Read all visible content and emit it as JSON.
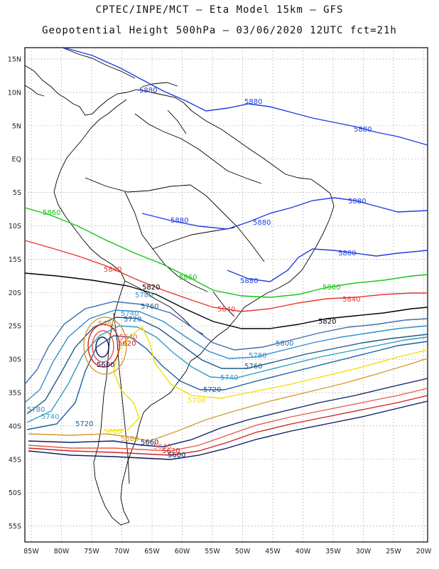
{
  "title_line1": "CPTEC/INPE/MCT –  Eta Model 15km – GFS",
  "title_line2": "Geopotential Height 500hPa – 03/06/2020 12UTC fct=21h",
  "lat_ticks": [
    "15N",
    "10N",
    "5N",
    "EQ",
    "5S",
    "10S",
    "15S",
    "20S",
    "25S",
    "30S",
    "35S",
    "40S",
    "45S",
    "50S",
    "55S"
  ],
  "lon_ticks": [
    "85W",
    "80W",
    "75W",
    "70W",
    "65W",
    "60W",
    "55W",
    "50W",
    "45W",
    "40W",
    "35W",
    "30W",
    "25W",
    "20W"
  ],
  "contour_labels": {
    "c5880": "5880",
    "c5860": "5860",
    "c5840": "5840",
    "c5820": "5820",
    "c5800": "5800",
    "c5780": "5780",
    "c5760": "5760",
    "c5740": "5740",
    "c5720": "5720",
    "c5700": "5700",
    "c5680": "5680",
    "c5660": "5660",
    "c5640": "5640",
    "c5620": "5620",
    "c5600": "5600"
  },
  "colors": {
    "c5880": "#1f3fe0",
    "c5860": "#16c416",
    "c5840": "#e8382f",
    "c5820": "#000000",
    "c5800": "#3d6fb0",
    "c5780": "#2f8fcf",
    "c5760": "#1f5a8a",
    "c5740": "#2ba0c0",
    "c5720": "#1c5fa8",
    "c5700": "#f0e000",
    "c5680": "#d89a30",
    "c5660": "#0c1f6a",
    "c5640": "#e85a4a",
    "c5620": "#d02020",
    "c5600": "#0a1a60",
    "grid": "#9a9a9a",
    "coast": "#000000"
  }
}
